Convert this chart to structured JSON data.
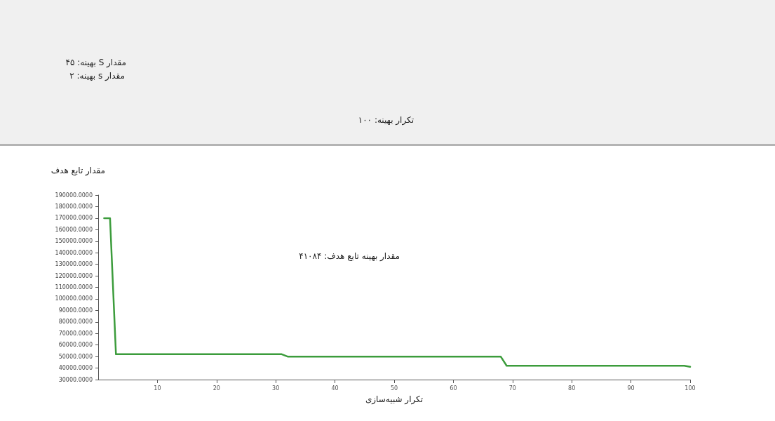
{
  "chart_data": {
    "type": "line",
    "xlabel": "تکرار شبیه‌سازی",
    "ylabel": "مقدار تابع هدف",
    "annotations": [
      "مقدار S بهینه: ۴۵",
      "مقدار s بهینه: ۲",
      "تکرار بهینه: ۱۰۰",
      "مقدار بهینه تابع هدف: ۴۱۰۸۴"
    ],
    "x": [
      1,
      2,
      3,
      31,
      32,
      68,
      69,
      99,
      100
    ],
    "series": [
      {
        "color": "#3c9c3c",
        "values": [
          170000,
          170000,
          52000,
          52000,
          50000,
          50000,
          42000,
          42000,
          41084
        ]
      }
    ],
    "xlim": [
      0,
      100
    ],
    "xticks": [
      10,
      20,
      30,
      40,
      50,
      60,
      70,
      80,
      90,
      100
    ],
    "ylim": [
      30000,
      190000
    ],
    "yticks": [
      {
        "value": 30000,
        "label": "30000.0000"
      },
      {
        "value": 40000,
        "label": "40000.0000"
      },
      {
        "value": 50000,
        "label": "50000.0000"
      },
      {
        "value": 60000,
        "label": "60000.0000"
      },
      {
        "value": 70000,
        "label": "70000.0000"
      },
      {
        "value": 80000,
        "label": "80000.0000"
      },
      {
        "value": 90000,
        "label": "90000.0000"
      },
      {
        "value": 100000,
        "label": "100000.0000"
      },
      {
        "value": 110000,
        "label": "110000.0000"
      },
      {
        "value": 120000,
        "label": "120000.0000"
      },
      {
        "value": 130000,
        "label": "130000.0000"
      },
      {
        "value": 140000,
        "label": "140000.0000"
      },
      {
        "value": 150000,
        "label": "150000.0000"
      },
      {
        "value": 160000,
        "label": "160000.0000"
      },
      {
        "value": 170000,
        "label": "170000.0000"
      },
      {
        "value": 180000,
        "label": "180000.0000"
      },
      {
        "value": 190000,
        "label": "190000.0000"
      }
    ],
    "grid": false,
    "marker": "none",
    "line_style": "solid"
  }
}
